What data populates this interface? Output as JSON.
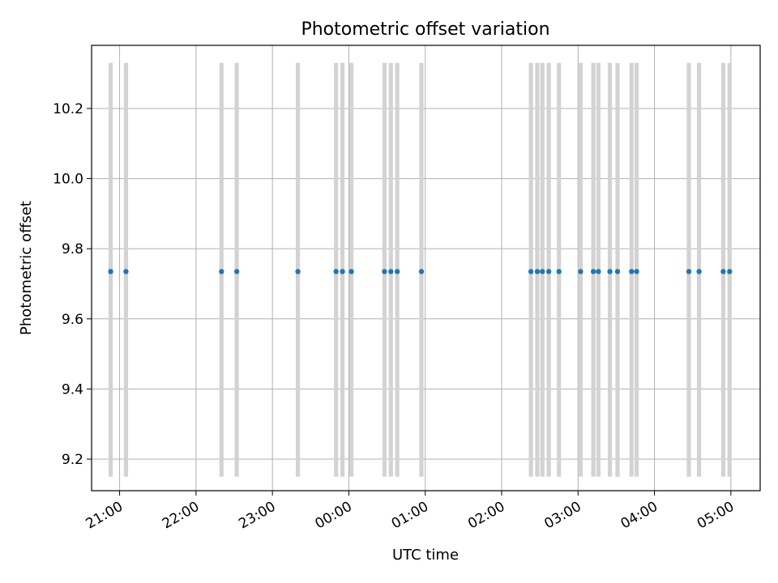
{
  "chart_data": {
    "type": "scatter",
    "title": "Photometric offset variation",
    "xlabel": "UTC time",
    "ylabel": "Photometric offset",
    "grid": true,
    "x_unit": "UTC time (HH:MM)",
    "x_ticks": [
      "21:00",
      "22:00",
      "23:00",
      "00:00",
      "01:00",
      "02:00",
      "03:00",
      "04:00",
      "05:00"
    ],
    "y_ticks": [
      "9.2",
      "9.4",
      "9.6",
      "9.8",
      "10.0",
      "10.2"
    ],
    "ylim": [
      9.11,
      10.38
    ],
    "xlim": [
      "20:38",
      "05:23"
    ],
    "x": [
      "20:53",
      "21:05",
      "22:20",
      "22:32",
      "23:20",
      "23:50",
      "23:55",
      "24:02",
      "24:28",
      "24:33",
      "24:38",
      "24:57",
      "26:23",
      "26:28",
      "26:32",
      "26:37",
      "26:45",
      "27:02",
      "27:12",
      "27:16",
      "27:25",
      "27:31",
      "27:42",
      "27:46",
      "28:27",
      "28:35",
      "28:54",
      "28:59"
    ],
    "y": [
      9.735,
      9.735,
      9.735,
      9.735,
      9.735,
      9.735,
      9.735,
      9.735,
      9.735,
      9.735,
      9.735,
      9.735,
      9.735,
      9.735,
      9.735,
      9.735,
      9.735,
      9.735,
      9.735,
      9.735,
      9.735,
      9.735,
      9.735,
      9.735,
      9.735,
      9.735,
      9.735,
      9.735
    ],
    "bands": {
      "description": "vertical grey bars at each observation time",
      "color": "#d3d3d3",
      "y_range": [
        9.15,
        10.33
      ]
    },
    "point_color": "#1f77b4"
  }
}
